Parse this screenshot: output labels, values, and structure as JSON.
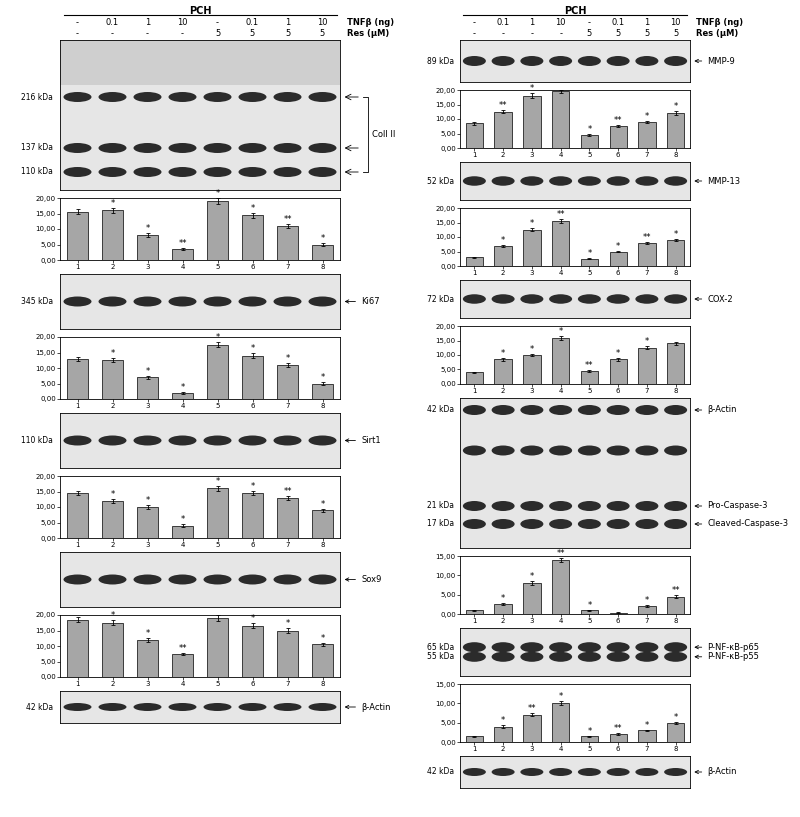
{
  "chart_data": [
    {
      "type": "bar",
      "categories": [
        "1",
        "2",
        "3",
        "4",
        "5",
        "6",
        "7",
        "8"
      ],
      "values": [
        15.5,
        16,
        8,
        3.5,
        19,
        14.5,
        11,
        5
      ],
      "errors": [
        0.8,
        0.8,
        0.6,
        0.4,
        0.9,
        0.8,
        0.7,
        0.5
      ],
      "annotations": [
        null,
        "*",
        "*",
        "**",
        "*",
        "*",
        "**",
        "*"
      ],
      "color": "#a6a6a6",
      "ylim": [
        0,
        20
      ],
      "yticks": [
        {
          "value": 0,
          "label": "0,00"
        },
        {
          "value": 5,
          "label": "5,00"
        },
        {
          "value": 10,
          "label": "10,00"
        },
        {
          "value": 15,
          "label": "15,00"
        },
        {
          "value": 20,
          "label": "20,00"
        }
      ]
    },
    {
      "type": "bar",
      "categories": [
        "1",
        "2",
        "3",
        "4",
        "5",
        "6",
        "7",
        "8"
      ],
      "values": [
        13,
        12.5,
        7,
        2,
        17.5,
        14,
        11,
        5
      ],
      "errors": [
        0.7,
        0.7,
        0.5,
        0.3,
        0.8,
        0.7,
        0.6,
        0.5
      ],
      "annotations": [
        null,
        "*",
        "*",
        "*",
        "*",
        "*",
        "*",
        "*"
      ],
      "color": "#a6a6a6",
      "ylim": [
        0,
        20
      ],
      "yticks": [
        {
          "value": 0,
          "label": "0,00"
        },
        {
          "value": 5,
          "label": "5,00"
        },
        {
          "value": 10,
          "label": "10,00"
        },
        {
          "value": 15,
          "label": "15,00"
        },
        {
          "value": 20,
          "label": "20,00"
        }
      ]
    },
    {
      "type": "bar",
      "categories": [
        "1",
        "2",
        "3",
        "4",
        "5",
        "6",
        "7",
        "8"
      ],
      "values": [
        14.5,
        12,
        10,
        4,
        16,
        14.5,
        13,
        9
      ],
      "errors": [
        0.7,
        0.6,
        0.6,
        0.4,
        0.8,
        0.7,
        0.7,
        0.5
      ],
      "annotations": [
        null,
        "*",
        "*",
        "*",
        "*",
        "*",
        "**",
        "*"
      ],
      "color": "#a6a6a6",
      "ylim": [
        0,
        20
      ],
      "yticks": [
        {
          "value": 0,
          "label": "0,00"
        },
        {
          "value": 5,
          "label": "5,00"
        },
        {
          "value": 10,
          "label": "10,00"
        },
        {
          "value": 15,
          "label": "15,00"
        },
        {
          "value": 20,
          "label": "20,00"
        }
      ]
    },
    {
      "type": "bar",
      "categories": [
        "1",
        "2",
        "3",
        "4",
        "5",
        "6",
        "7",
        "8"
      ],
      "values": [
        18.5,
        17.5,
        12,
        7.5,
        19,
        16.5,
        15,
        10.5
      ],
      "errors": [
        0.8,
        0.8,
        0.6,
        0.4,
        0.9,
        0.8,
        0.7,
        0.6
      ],
      "annotations": [
        null,
        "*",
        "*",
        "**",
        null,
        "*",
        "*",
        "*"
      ],
      "color": "#a6a6a6",
      "ylim": [
        0,
        20
      ],
      "yticks": [
        {
          "value": 0,
          "label": "0,00"
        },
        {
          "value": 5,
          "label": "5,00"
        },
        {
          "value": 10,
          "label": "10,00"
        },
        {
          "value": 15,
          "label": "15,00"
        },
        {
          "value": 20,
          "label": "20,00"
        }
      ]
    },
    {
      "type": "bar",
      "categories": [
        "1",
        "2",
        "3",
        "4",
        "5",
        "6",
        "7",
        "8"
      ],
      "values": [
        8.5,
        12.5,
        18,
        19.5,
        4.5,
        7.5,
        9,
        12
      ],
      "errors": [
        0.4,
        0.6,
        0.8,
        0.5,
        0.3,
        0.4,
        0.4,
        0.6
      ],
      "annotations": [
        null,
        "**",
        "*",
        null,
        "*",
        "**",
        "*",
        "*"
      ],
      "color": "#a6a6a6",
      "ylim": [
        0,
        20
      ],
      "yticks": [
        {
          "value": 0,
          "label": "0,00"
        },
        {
          "value": 5,
          "label": "5,00"
        },
        {
          "value": 10,
          "label": "10,00"
        },
        {
          "value": 15,
          "label": "15,00"
        },
        {
          "value": 20,
          "label": "20,00"
        }
      ]
    },
    {
      "type": "bar",
      "categories": [
        "1",
        "2",
        "3",
        "4",
        "5",
        "6",
        "7",
        "8"
      ],
      "values": [
        3,
        7,
        12.5,
        15.5,
        2.5,
        5,
        8,
        9
      ],
      "errors": [
        0.2,
        0.4,
        0.6,
        0.8,
        0.2,
        0.3,
        0.4,
        0.4
      ],
      "annotations": [
        null,
        "*",
        "*",
        "**",
        "*",
        "*",
        "**",
        "*"
      ],
      "color": "#a6a6a6",
      "ylim": [
        0,
        20
      ],
      "yticks": [
        {
          "value": 0,
          "label": "0,00"
        },
        {
          "value": 5,
          "label": "5,00"
        },
        {
          "value": 10,
          "label": "10,00"
        },
        {
          "value": 15,
          "label": "15,00"
        },
        {
          "value": 20,
          "label": "20,00"
        }
      ]
    },
    {
      "type": "bar",
      "categories": [
        "1",
        "2",
        "3",
        "4",
        "5",
        "6",
        "7",
        "8"
      ],
      "values": [
        4,
        8.5,
        10,
        16,
        4.5,
        8.5,
        12.5,
        14
      ],
      "errors": [
        0.2,
        0.4,
        0.5,
        0.7,
        0.3,
        0.4,
        0.6,
        0.6
      ],
      "annotations": [
        null,
        "*",
        "*",
        "*",
        "**",
        "*",
        "*",
        null
      ],
      "color": "#a6a6a6",
      "ylim": [
        0,
        20
      ],
      "yticks": [
        {
          "value": 0,
          "label": "0,00"
        },
        {
          "value": 5,
          "label": "5,00"
        },
        {
          "value": 10,
          "label": "10,00"
        },
        {
          "value": 15,
          "label": "15,00"
        },
        {
          "value": 20,
          "label": "20,00"
        }
      ]
    },
    {
      "type": "bar",
      "categories": [
        "1",
        "2",
        "3",
        "4",
        "5",
        "6",
        "7",
        "8"
      ],
      "values": [
        1,
        2.5,
        8,
        14,
        1,
        0.3,
        2,
        4.5
      ],
      "errors": [
        0.1,
        0.3,
        0.5,
        0.6,
        0.1,
        0.1,
        0.2,
        0.3
      ],
      "annotations": [
        null,
        "*",
        "*",
        "**",
        "*",
        null,
        "*",
        "**"
      ],
      "color": "#a6a6a6",
      "ylim": [
        0,
        15
      ],
      "yticks": [
        {
          "value": 0,
          "label": "0,00"
        },
        {
          "value": 5,
          "label": "5,00"
        },
        {
          "value": 10,
          "label": "10,00"
        },
        {
          "value": 15,
          "label": "15,00"
        }
      ]
    },
    {
      "type": "bar",
      "categories": [
        "1",
        "2",
        "3",
        "4",
        "5",
        "6",
        "7",
        "8"
      ],
      "values": [
        1.5,
        4,
        7,
        10,
        1.5,
        2,
        3,
        5
      ],
      "errors": [
        0.1,
        0.3,
        0.4,
        0.5,
        0.1,
        0.2,
        0.2,
        0.3
      ],
      "annotations": [
        null,
        "*",
        "**",
        "*",
        "*",
        "**",
        "*",
        "*"
      ],
      "color": "#a6a6a6",
      "ylim": [
        0,
        15
      ],
      "yticks": [
        {
          "value": 0,
          "label": "0,00"
        },
        {
          "value": 5,
          "label": "5,00"
        },
        {
          "value": 10,
          "label": "10,00"
        },
        {
          "value": 15,
          "label": "15,00"
        }
      ]
    }
  ],
  "panels": [
    {
      "header": {
        "title": "PCH",
        "rows": [
          {
            "name": "TNFβ (ng)",
            "labels": [
              "-",
              "0.1",
              "1",
              "10",
              "-",
              "0.1",
              "1",
              "10"
            ]
          },
          {
            "name": "Res (µM)",
            "labels": [
              "-",
              "-",
              "-",
              "-",
              "5",
              "5",
              "5",
              "5"
            ]
          }
        ]
      },
      "blots": [
        {
          "left_labels": [
            "216 kDa",
            "137 kDa",
            "110 kDa"
          ],
          "right_labels": [
            "Coll II"
          ]
        },
        {
          "left_labels": [
            "345 kDa"
          ],
          "right_labels": [
            "Ki67"
          ]
        },
        {
          "left_labels": [
            "110 kDa"
          ],
          "right_labels": [
            "Sirt1"
          ]
        },
        {
          "left_labels": [],
          "right_labels": [
            "Sox9"
          ]
        },
        {
          "left_labels": [
            "42 kDa"
          ],
          "right_labels": [
            "β-Actin"
          ]
        }
      ]
    },
    {
      "header": {
        "title": "PCH",
        "rows": [
          {
            "name": "TNFβ (ng)",
            "labels": [
              "-",
              "0.1",
              "1",
              "10",
              "-",
              "0.1",
              "1",
              "10"
            ]
          },
          {
            "name": "Res (µM)",
            "labels": [
              "-",
              "-",
              "-",
              "-",
              "5",
              "5",
              "5",
              "5"
            ]
          }
        ]
      },
      "blots": [
        {
          "left_labels": [
            "89 kDa"
          ],
          "right_labels": [
            "MMP-9"
          ]
        },
        {
          "left_labels": [
            "52 kDa"
          ],
          "right_labels": [
            "MMP-13"
          ]
        },
        {
          "left_labels": [
            "72 kDa"
          ],
          "right_labels": [
            "COX-2"
          ]
        },
        {
          "left_labels": [
            "42 kDa",
            "21 kDa",
            "17 kDa"
          ],
          "right_labels": [
            "β-Actin",
            "Pro-Caspase-3",
            "Cleaved-Caspase-3"
          ]
        },
        {
          "left_labels": [
            "65 kDa",
            "55 kDa"
          ],
          "right_labels": [
            "P-NF-κB-p65",
            "P-NF-κB-p55"
          ]
        },
        {
          "left_labels": [
            "42 kDa"
          ],
          "right_labels": [
            "β-Actin"
          ]
        }
      ]
    }
  ]
}
